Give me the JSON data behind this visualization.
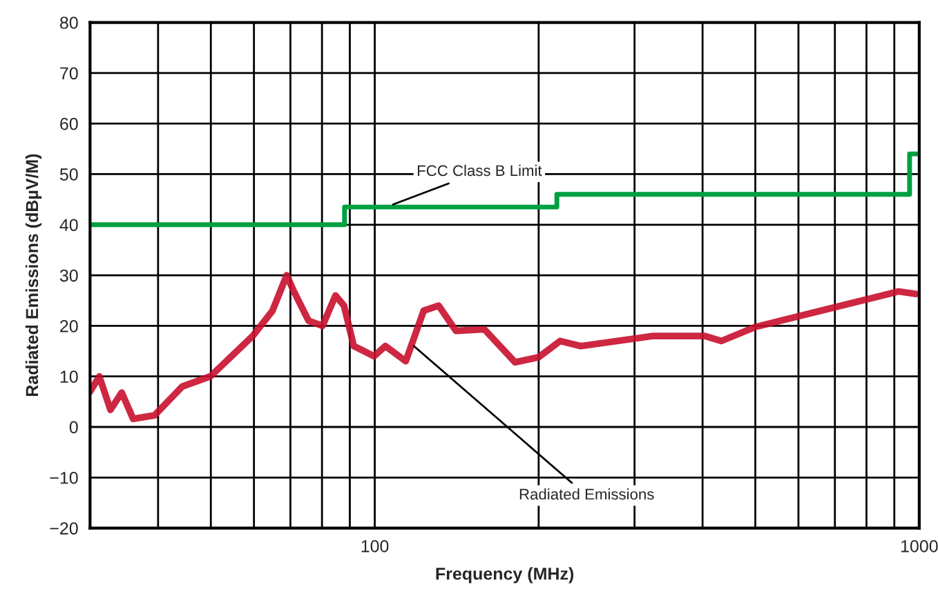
{
  "chart_data": {
    "type": "line",
    "xlabel": "Frequency (MHz)",
    "ylabel": "Radiated Emissions (dBµV/M)",
    "xlim": [
      30,
      1000
    ],
    "ylim": [
      -20,
      80
    ],
    "log": "x",
    "xticks": [
      {
        "value": 40,
        "label": null
      },
      {
        "value": 50,
        "label": null
      },
      {
        "value": 60,
        "label": null
      },
      {
        "value": 70,
        "label": null
      },
      {
        "value": 80,
        "label": null
      },
      {
        "value": 90,
        "label": null
      },
      100,
      {
        "value": 200,
        "label": null
      },
      {
        "value": 300,
        "label": null
      },
      {
        "value": 400,
        "label": null
      },
      {
        "value": 500,
        "label": null
      },
      {
        "value": 600,
        "label": null
      },
      {
        "value": 700,
        "label": null
      },
      {
        "value": 800,
        "label": null
      },
      {
        "value": 900,
        "label": null
      },
      1000
    ],
    "yticks": [
      {
        "value": -20,
        "label": "−20"
      },
      {
        "value": -10,
        "label": "−10"
      },
      0,
      10,
      20,
      30,
      40,
      50,
      60,
      70,
      80
    ],
    "grid": true,
    "marker": "none",
    "series": [
      {
        "type": "step",
        "color": "#00a040",
        "x": [
          30,
          88,
          216,
          960,
          1000
        ],
        "values": [
          40,
          43.5,
          46,
          54,
          54
        ]
      },
      {
        "color": "#c8102e",
        "x": [
          30,
          31.2,
          32.7,
          34.3,
          36.0,
          39.4,
          44.3,
          49.9,
          59.7,
          64.9,
          68.9,
          70.9,
          75.6,
          80.2,
          84.7,
          87.8,
          91.5,
          99.7,
          104.6,
          114,
          123,
          131,
          141,
          159,
          181,
          200,
          219,
          239,
          325,
          404,
          433,
          501,
          671,
          916,
          988
        ],
        "values": [
          7,
          10,
          3.4,
          6.8,
          1.6,
          2.3,
          8,
          10,
          18,
          23,
          30,
          27,
          21,
          20,
          26,
          24,
          16,
          14,
          16,
          13,
          23,
          24,
          19,
          19.3,
          12.8,
          13.8,
          17,
          16,
          18,
          18,
          17,
          19.8,
          23.2,
          26.8,
          26.3
        ]
      }
    ],
    "annotations": [
      {
        "text": "FCC Class B Limit",
        "x": 108,
        "y": 44
      },
      {
        "text": "Radiated Emissions",
        "x": 118,
        "y": 16
      }
    ]
  }
}
